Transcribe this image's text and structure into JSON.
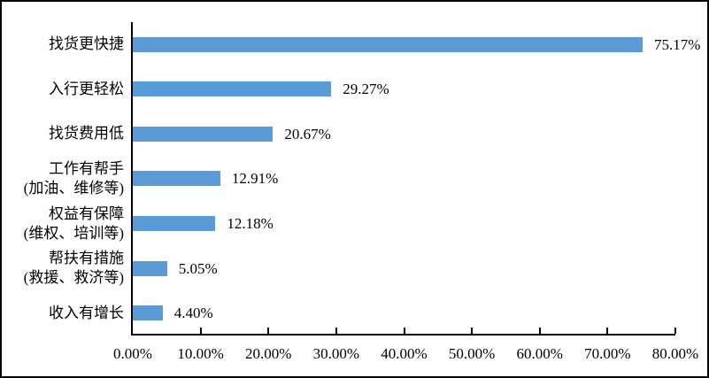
{
  "chart_data": {
    "type": "bar",
    "orientation": "horizontal",
    "title": "",
    "xlabel": "",
    "ylabel": "",
    "grid": false,
    "legend": null,
    "xlim": [
      0,
      80
    ],
    "categories": [
      [
        "找货更快捷"
      ],
      [
        "入行更轻松"
      ],
      [
        "找货费用低"
      ],
      [
        "工作有帮手",
        "(加油、维修等)"
      ],
      [
        "权益有保障",
        "(维权、培训等)"
      ],
      [
        "帮扶有措施",
        "(救援、救济等)"
      ],
      [
        "收入有增长"
      ]
    ],
    "values": [
      75.17,
      29.27,
      20.67,
      12.91,
      12.18,
      5.05,
      4.4
    ],
    "value_labels": [
      "75.17%",
      "29.27%",
      "20.67%",
      "12.91%",
      "12.18%",
      "5.05%",
      "4.40%"
    ],
    "x_tick_labels": [
      "0.00%",
      "10.00%",
      "20.00%",
      "30.00%",
      "40.00%",
      "50.00%",
      "60.00%",
      "70.00%",
      "80.00%"
    ],
    "colors": {
      "bar": "#5B9BD5",
      "axis": "#000000",
      "text": "#000000",
      "background": "#FFFFFF",
      "frame_border": "#000000"
    }
  }
}
